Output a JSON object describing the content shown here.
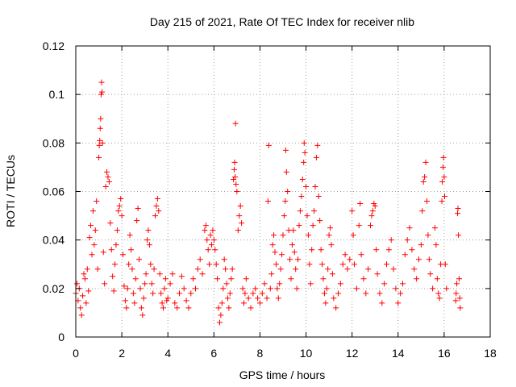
{
  "chart_data": {
    "type": "scatter",
    "title": "Day 215 of 2021, Rate Of TEC Index for receiver nlib",
    "xlabel": "GPS time / hours",
    "ylabel": "ROTI / TECUs",
    "xlim": [
      0,
      18
    ],
    "ylim": [
      0,
      0.12
    ],
    "x_ticks": [
      0,
      2,
      4,
      6,
      8,
      10,
      12,
      14,
      16,
      18
    ],
    "y_ticks": [
      0,
      0.02,
      0.04,
      0.06,
      0.08,
      0.1,
      0.12
    ],
    "x_tick_labels": [
      "0",
      "2",
      "4",
      "6",
      "8",
      "10",
      "12",
      "14",
      "16",
      "18"
    ],
    "y_tick_labels": [
      "0",
      "0.02",
      "0.04",
      "0.06",
      "0.08",
      "0.1",
      "0.12"
    ],
    "grid": true,
    "marker": "+",
    "marker_color": "#ff0000",
    "series": [
      {
        "name": "ROTI",
        "points": [
          [
            0.0,
            0.018
          ],
          [
            0.05,
            0.022
          ],
          [
            0.1,
            0.015
          ],
          [
            0.15,
            0.02
          ],
          [
            0.2,
            0.012
          ],
          [
            0.25,
            0.009
          ],
          [
            0.3,
            0.017
          ],
          [
            0.35,
            0.026
          ],
          [
            0.4,
            0.024
          ],
          [
            0.45,
            0.014
          ],
          [
            0.5,
            0.028
          ],
          [
            0.55,
            0.019
          ],
          [
            0.6,
            0.041
          ],
          [
            0.65,
            0.046
          ],
          [
            0.7,
            0.034
          ],
          [
            0.75,
            0.052
          ],
          [
            0.8,
            0.038
          ],
          [
            0.85,
            0.044
          ],
          [
            0.9,
            0.056
          ],
          [
            0.95,
            0.028
          ],
          [
            1.0,
            0.074
          ],
          [
            1.02,
            0.079
          ],
          [
            1.04,
            0.081
          ],
          [
            1.06,
            0.086
          ],
          [
            1.08,
            0.09
          ],
          [
            1.1,
            0.1
          ],
          [
            1.12,
            0.105
          ],
          [
            1.14,
            0.101
          ],
          [
            1.16,
            0.08
          ],
          [
            1.2,
            0.035
          ],
          [
            1.25,
            0.022
          ],
          [
            1.3,
            0.062
          ],
          [
            1.35,
            0.068
          ],
          [
            1.4,
            0.066
          ],
          [
            1.45,
            0.064
          ],
          [
            1.5,
            0.047
          ],
          [
            1.55,
            0.036
          ],
          [
            1.6,
            0.025
          ],
          [
            1.65,
            0.019
          ],
          [
            1.7,
            0.03
          ],
          [
            1.75,
            0.038
          ],
          [
            1.8,
            0.044
          ],
          [
            1.85,
            0.052
          ],
          [
            1.9,
            0.054
          ],
          [
            1.95,
            0.057
          ],
          [
            2.0,
            0.05
          ],
          [
            2.05,
            0.034
          ],
          [
            2.1,
            0.021
          ],
          [
            2.15,
            0.015
          ],
          [
            2.2,
            0.012
          ],
          [
            2.25,
            0.02
          ],
          [
            2.3,
            0.03
          ],
          [
            2.35,
            0.042
          ],
          [
            2.4,
            0.036
          ],
          [
            2.45,
            0.028
          ],
          [
            2.5,
            0.018
          ],
          [
            2.55,
            0.014
          ],
          [
            2.6,
            0.024
          ],
          [
            2.65,
            0.048
          ],
          [
            2.7,
            0.053
          ],
          [
            2.75,
            0.032
          ],
          [
            2.8,
            0.02
          ],
          [
            2.85,
            0.012
          ],
          [
            2.9,
            0.009
          ],
          [
            2.95,
            0.016
          ],
          [
            3.0,
            0.022
          ],
          [
            3.05,
            0.026
          ],
          [
            3.1,
            0.04
          ],
          [
            3.15,
            0.044
          ],
          [
            3.2,
            0.038
          ],
          [
            3.25,
            0.03
          ],
          [
            3.3,
            0.022
          ],
          [
            3.35,
            0.018
          ],
          [
            3.4,
            0.028
          ],
          [
            3.45,
            0.05
          ],
          [
            3.5,
            0.054
          ],
          [
            3.55,
            0.057
          ],
          [
            3.6,
            0.052
          ],
          [
            3.65,
            0.026
          ],
          [
            3.7,
            0.018
          ],
          [
            3.75,
            0.014
          ],
          [
            3.8,
            0.012
          ],
          [
            3.85,
            0.02
          ],
          [
            3.9,
            0.024
          ],
          [
            3.95,
            0.015
          ],
          [
            4.0,
            0.016
          ],
          [
            4.1,
            0.022
          ],
          [
            4.2,
            0.026
          ],
          [
            4.3,
            0.014
          ],
          [
            4.4,
            0.012
          ],
          [
            4.5,
            0.018
          ],
          [
            4.6,
            0.025
          ],
          [
            4.7,
            0.02
          ],
          [
            4.8,
            0.015
          ],
          [
            4.9,
            0.012
          ],
          [
            5.0,
            0.018
          ],
          [
            5.1,
            0.024
          ],
          [
            5.2,
            0.02
          ],
          [
            5.3,
            0.028
          ],
          [
            5.4,
            0.032
          ],
          [
            5.5,
            0.026
          ],
          [
            5.6,
            0.044
          ],
          [
            5.65,
            0.046
          ],
          [
            5.7,
            0.04
          ],
          [
            5.75,
            0.036
          ],
          [
            5.8,
            0.03
          ],
          [
            5.85,
            0.042
          ],
          [
            5.9,
            0.038
          ],
          [
            5.95,
            0.044
          ],
          [
            6.0,
            0.04
          ],
          [
            6.05,
            0.036
          ],
          [
            6.1,
            0.03
          ],
          [
            6.15,
            0.024
          ],
          [
            6.2,
            0.012
          ],
          [
            6.25,
            0.006
          ],
          [
            6.3,
            0.009
          ],
          [
            6.35,
            0.014
          ],
          [
            6.4,
            0.02
          ],
          [
            6.45,
            0.032
          ],
          [
            6.5,
            0.028
          ],
          [
            6.55,
            0.022
          ],
          [
            6.6,
            0.016
          ],
          [
            6.65,
            0.012
          ],
          [
            6.7,
            0.018
          ],
          [
            6.75,
            0.024
          ],
          [
            6.8,
            0.028
          ],
          [
            6.85,
            0.065
          ],
          [
            6.88,
            0.069
          ],
          [
            6.9,
            0.072
          ],
          [
            6.92,
            0.066
          ],
          [
            6.94,
            0.088
          ],
          [
            6.96,
            0.063
          ],
          [
            7.0,
            0.06
          ],
          [
            7.05,
            0.044
          ],
          [
            7.1,
            0.05
          ],
          [
            7.15,
            0.054
          ],
          [
            7.2,
            0.047
          ],
          [
            7.25,
            0.02
          ],
          [
            7.3,
            0.014
          ],
          [
            7.35,
            0.018
          ],
          [
            7.4,
            0.024
          ],
          [
            7.5,
            0.016
          ],
          [
            7.6,
            0.012
          ],
          [
            7.7,
            0.018
          ],
          [
            7.8,
            0.02
          ],
          [
            7.9,
            0.016
          ],
          [
            8.0,
            0.014
          ],
          [
            8.1,
            0.018
          ],
          [
            8.2,
            0.022
          ],
          [
            8.3,
            0.016
          ],
          [
            8.35,
            0.056
          ],
          [
            8.38,
            0.079
          ],
          [
            8.45,
            0.02
          ],
          [
            8.5,
            0.026
          ],
          [
            8.55,
            0.038
          ],
          [
            8.6,
            0.042
          ],
          [
            8.65,
            0.035
          ],
          [
            8.7,
            0.03
          ],
          [
            8.75,
            0.02
          ],
          [
            8.8,
            0.016
          ],
          [
            8.85,
            0.022
          ],
          [
            8.9,
            0.028
          ],
          [
            8.95,
            0.034
          ],
          [
            9.0,
            0.042
          ],
          [
            9.05,
            0.05
          ],
          [
            9.1,
            0.056
          ],
          [
            9.12,
            0.077
          ],
          [
            9.15,
            0.068
          ],
          [
            9.2,
            0.06
          ],
          [
            9.25,
            0.044
          ],
          [
            9.3,
            0.032
          ],
          [
            9.35,
            0.024
          ],
          [
            9.4,
            0.038
          ],
          [
            9.45,
            0.044
          ],
          [
            9.5,
            0.035
          ],
          [
            9.55,
            0.028
          ],
          [
            9.6,
            0.02
          ],
          [
            9.65,
            0.032
          ],
          [
            9.7,
            0.046
          ],
          [
            9.75,
            0.052
          ],
          [
            9.8,
            0.058
          ],
          [
            9.85,
            0.065
          ],
          [
            9.9,
            0.072
          ],
          [
            9.92,
            0.08
          ],
          [
            9.95,
            0.076
          ],
          [
            10.0,
            0.062
          ],
          [
            10.05,
            0.05
          ],
          [
            10.1,
            0.042
          ],
          [
            10.15,
            0.03
          ],
          [
            10.2,
            0.022
          ],
          [
            10.25,
            0.036
          ],
          [
            10.3,
            0.046
          ],
          [
            10.35,
            0.052
          ],
          [
            10.4,
            0.062
          ],
          [
            10.45,
            0.074
          ],
          [
            10.5,
            0.079
          ],
          [
            10.55,
            0.058
          ],
          [
            10.6,
            0.048
          ],
          [
            10.65,
            0.036
          ],
          [
            10.7,
            0.03
          ],
          [
            10.75,
            0.024
          ],
          [
            10.8,
            0.018
          ],
          [
            10.85,
            0.014
          ],
          [
            10.9,
            0.02
          ],
          [
            10.95,
            0.028
          ],
          [
            11.0,
            0.042
          ],
          [
            11.05,
            0.045
          ],
          [
            11.1,
            0.038
          ],
          [
            11.15,
            0.026
          ],
          [
            11.2,
            0.016
          ],
          [
            11.3,
            0.012
          ],
          [
            11.4,
            0.018
          ],
          [
            11.5,
            0.022
          ],
          [
            11.6,
            0.03
          ],
          [
            11.7,
            0.034
          ],
          [
            11.8,
            0.028
          ],
          [
            11.9,
            0.032
          ],
          [
            12.0,
            0.052
          ],
          [
            12.05,
            0.042
          ],
          [
            12.1,
            0.03
          ],
          [
            12.2,
            0.02
          ],
          [
            12.3,
            0.046
          ],
          [
            12.35,
            0.055
          ],
          [
            12.4,
            0.034
          ],
          [
            12.5,
            0.024
          ],
          [
            12.6,
            0.018
          ],
          [
            12.7,
            0.028
          ],
          [
            12.8,
            0.046
          ],
          [
            12.85,
            0.05
          ],
          [
            12.9,
            0.052
          ],
          [
            12.95,
            0.055
          ],
          [
            13.0,
            0.054
          ],
          [
            13.05,
            0.036
          ],
          [
            13.1,
            0.026
          ],
          [
            13.2,
            0.018
          ],
          [
            13.3,
            0.014
          ],
          [
            13.4,
            0.022
          ],
          [
            13.5,
            0.03
          ],
          [
            13.6,
            0.036
          ],
          [
            13.7,
            0.04
          ],
          [
            13.8,
            0.028
          ],
          [
            13.9,
            0.02
          ],
          [
            14.0,
            0.014
          ],
          [
            14.1,
            0.018
          ],
          [
            14.2,
            0.022
          ],
          [
            14.3,
            0.034
          ],
          [
            14.4,
            0.04
          ],
          [
            14.5,
            0.045
          ],
          [
            14.6,
            0.036
          ],
          [
            14.7,
            0.028
          ],
          [
            14.8,
            0.024
          ],
          [
            14.9,
            0.032
          ],
          [
            15.0,
            0.038
          ],
          [
            15.05,
            0.052
          ],
          [
            15.1,
            0.064
          ],
          [
            15.15,
            0.066
          ],
          [
            15.2,
            0.072
          ],
          [
            15.25,
            0.056
          ],
          [
            15.3,
            0.042
          ],
          [
            15.35,
            0.032
          ],
          [
            15.4,
            0.026
          ],
          [
            15.5,
            0.02
          ],
          [
            15.6,
            0.045
          ],
          [
            15.65,
            0.038
          ],
          [
            15.7,
            0.024
          ],
          [
            15.75,
            0.018
          ],
          [
            15.8,
            0.016
          ],
          [
            15.85,
            0.03
          ],
          [
            15.9,
            0.056
          ],
          [
            15.92,
            0.064
          ],
          [
            15.95,
            0.07
          ],
          [
            15.97,
            0.074
          ],
          [
            16.0,
            0.066
          ],
          [
            16.02,
            0.058
          ],
          [
            16.05,
            0.03
          ],
          [
            16.1,
            0.02
          ],
          [
            16.5,
            0.015
          ],
          [
            16.52,
            0.018
          ],
          [
            16.55,
            0.022
          ],
          [
            16.58,
            0.051
          ],
          [
            16.6,
            0.053
          ],
          [
            16.62,
            0.042
          ],
          [
            16.65,
            0.024
          ],
          [
            16.68,
            0.016
          ],
          [
            16.7,
            0.012
          ]
        ]
      }
    ]
  }
}
